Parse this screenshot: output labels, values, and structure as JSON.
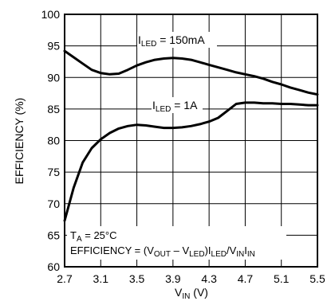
{
  "chart_data": {
    "type": "line",
    "xlabel": {
      "main": "V",
      "sub": "IN",
      "unit": " (V)"
    },
    "ylabel": "EFFICIENCY (%)",
    "xlim": [
      2.7,
      5.5
    ],
    "ylim": [
      60,
      100
    ],
    "xticks": [
      "2.7",
      "3.1",
      "3.5",
      "3.9",
      "4.3",
      "4.7",
      "5.1",
      "5.5"
    ],
    "yticks": [
      "60",
      "65",
      "70",
      "75",
      "80",
      "85",
      "90",
      "95",
      "100"
    ],
    "grid": true,
    "series": [
      {
        "label": {
          "main": "I",
          "sub": "LED",
          "rest": " = 150mA"
        },
        "x": [
          2.7,
          2.8,
          2.9,
          3.0,
          3.1,
          3.2,
          3.3,
          3.4,
          3.5,
          3.6,
          3.7,
          3.8,
          3.9,
          4.0,
          4.1,
          4.2,
          4.3,
          4.4,
          4.5,
          4.6,
          4.7,
          4.8,
          4.9,
          5.0,
          5.1,
          5.2,
          5.3,
          5.4,
          5.5
        ],
        "y": [
          94.2,
          93.2,
          92.2,
          91.2,
          90.7,
          90.5,
          90.6,
          91.2,
          91.9,
          92.4,
          92.8,
          93.0,
          93.1,
          93.0,
          92.8,
          92.4,
          92.0,
          91.6,
          91.2,
          90.8,
          90.5,
          90.2,
          89.8,
          89.3,
          88.9,
          88.4,
          88.0,
          87.6,
          87.3
        ]
      },
      {
        "label": {
          "main": "I",
          "sub": "LED",
          "rest": " = 1A"
        },
        "x": [
          2.7,
          2.8,
          2.9,
          3.0,
          3.1,
          3.2,
          3.3,
          3.4,
          3.5,
          3.6,
          3.7,
          3.8,
          3.9,
          4.0,
          4.1,
          4.2,
          4.3,
          4.4,
          4.5,
          4.6,
          4.7,
          4.8,
          4.9,
          5.0,
          5.1,
          5.2,
          5.3,
          5.4,
          5.5
        ],
        "y": [
          67.3,
          72.5,
          76.5,
          78.8,
          80.2,
          81.2,
          81.9,
          82.3,
          82.5,
          82.4,
          82.2,
          82.0,
          82.0,
          82.1,
          82.3,
          82.6,
          83.0,
          83.6,
          84.7,
          85.8,
          86.0,
          86.0,
          85.9,
          85.9,
          85.8,
          85.8,
          85.7,
          85.6,
          85.6
        ]
      }
    ],
    "annotation": {
      "line1": {
        "t": "T",
        "sub": "A",
        "rest": " = 25°C"
      },
      "line2": {
        "prefix": "EFFICIENCY = (V",
        "sub1": "OUT",
        "mid1": " – V",
        "sub2": "LED",
        "mid2": ")I",
        "sub3": "LED",
        "mid3": "/V",
        "sub4": "IN",
        "mid4": "I",
        "sub5": "IN"
      }
    }
  }
}
